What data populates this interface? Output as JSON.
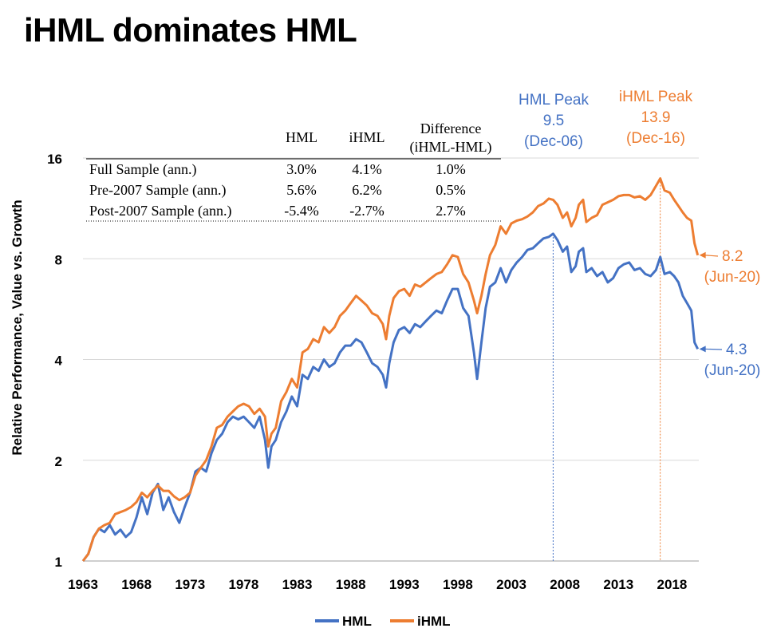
{
  "page": {
    "title": "iHML dominates HML"
  },
  "colors": {
    "hml": "#4472C4",
    "ihml": "#ED7D31",
    "grid": "#D9D9D9",
    "axis": "#BFBFBF"
  },
  "chart_data": {
    "type": "line",
    "title": "iHML dominates HML",
    "ylabel": "Relative Performance, Value vs. Growth",
    "xlabel": "",
    "y_scale": "log2",
    "ylim": [
      1,
      16
    ],
    "xlim": [
      1963,
      2020.5
    ],
    "y_ticks": [
      "1",
      "2",
      "4",
      "8",
      "16"
    ],
    "x_ticks": [
      "1963",
      "1968",
      "1973",
      "1978",
      "1983",
      "1988",
      "1993",
      "1998",
      "2003",
      "2008",
      "2013",
      "2018"
    ],
    "grid": "horizontal",
    "legend_position": "bottom",
    "series": [
      {
        "name": "HML",
        "color": "#4472C4",
        "x": [
          1963.0,
          1963.5,
          1964.0,
          1964.5,
          1965.0,
          1965.5,
          1966.0,
          1966.5,
          1967.0,
          1967.5,
          1968.0,
          1968.5,
          1969.0,
          1969.5,
          1970.0,
          1970.5,
          1971.0,
          1971.5,
          1972.0,
          1972.5,
          1973.0,
          1973.5,
          1974.0,
          1974.5,
          1975.0,
          1975.5,
          1976.0,
          1976.5,
          1977.0,
          1977.5,
          1978.0,
          1978.5,
          1979.0,
          1979.5,
          1980.0,
          1980.3,
          1980.6,
          1981.0,
          1981.5,
          1982.0,
          1982.5,
          1983.0,
          1983.5,
          1984.0,
          1984.5,
          1985.0,
          1985.5,
          1986.0,
          1986.5,
          1987.0,
          1987.5,
          1988.0,
          1988.5,
          1989.0,
          1989.5,
          1990.0,
          1990.5,
          1991.0,
          1991.3,
          1991.6,
          1992.0,
          1992.5,
          1993.0,
          1993.5,
          1994.0,
          1994.5,
          1995.0,
          1995.5,
          1996.0,
          1996.5,
          1997.0,
          1997.5,
          1998.0,
          1998.5,
          1999.0,
          1999.5,
          1999.8,
          2000.2,
          2000.6,
          2001.0,
          2001.5,
          2002.0,
          2002.5,
          2003.0,
          2003.5,
          2004.0,
          2004.5,
          2005.0,
          2005.5,
          2006.0,
          2006.5,
          2006.9,
          2007.3,
          2007.8,
          2008.2,
          2008.6,
          2009.0,
          2009.3,
          2009.7,
          2010.0,
          2010.5,
          2011.0,
          2011.5,
          2012.0,
          2012.5,
          2013.0,
          2013.5,
          2014.0,
          2014.5,
          2015.0,
          2015.5,
          2016.0,
          2016.5,
          2016.9,
          2017.3,
          2017.8,
          2018.2,
          2018.6,
          2019.0,
          2019.4,
          2019.8,
          2020.1,
          2020.4
        ],
        "values": [
          1.0,
          1.05,
          1.18,
          1.25,
          1.22,
          1.28,
          1.2,
          1.24,
          1.18,
          1.22,
          1.35,
          1.55,
          1.38,
          1.6,
          1.7,
          1.42,
          1.55,
          1.4,
          1.3,
          1.45,
          1.6,
          1.85,
          1.9,
          1.85,
          2.1,
          2.3,
          2.4,
          2.6,
          2.7,
          2.65,
          2.7,
          2.6,
          2.5,
          2.7,
          2.3,
          1.9,
          2.2,
          2.3,
          2.6,
          2.8,
          3.1,
          2.9,
          3.6,
          3.5,
          3.8,
          3.7,
          4.0,
          3.8,
          3.9,
          4.2,
          4.4,
          4.4,
          4.6,
          4.5,
          4.2,
          3.9,
          3.8,
          3.6,
          3.3,
          3.9,
          4.5,
          4.9,
          5.0,
          4.8,
          5.1,
          5.0,
          5.2,
          5.4,
          5.6,
          5.5,
          6.0,
          6.5,
          6.5,
          5.7,
          5.4,
          4.2,
          3.5,
          4.5,
          5.7,
          6.6,
          6.8,
          7.5,
          6.8,
          7.4,
          7.8,
          8.1,
          8.5,
          8.6,
          8.9,
          9.2,
          9.3,
          9.5,
          9.1,
          8.4,
          8.7,
          7.3,
          7.6,
          8.4,
          8.6,
          7.3,
          7.5,
          7.1,
          7.3,
          6.8,
          7.0,
          7.5,
          7.7,
          7.8,
          7.4,
          7.5,
          7.2,
          7.1,
          7.4,
          8.1,
          7.2,
          7.3,
          7.1,
          6.8,
          6.2,
          5.9,
          5.6,
          4.5,
          4.3
        ]
      },
      {
        "name": "iHML",
        "color": "#ED7D31",
        "x": [
          1963.0,
          1963.5,
          1964.0,
          1964.5,
          1965.0,
          1965.5,
          1966.0,
          1966.5,
          1967.0,
          1967.5,
          1968.0,
          1968.5,
          1969.0,
          1969.5,
          1970.0,
          1970.5,
          1971.0,
          1971.5,
          1972.0,
          1972.5,
          1973.0,
          1973.5,
          1974.0,
          1974.5,
          1975.0,
          1975.5,
          1976.0,
          1976.5,
          1977.0,
          1977.5,
          1978.0,
          1978.5,
          1979.0,
          1979.5,
          1980.0,
          1980.3,
          1980.6,
          1981.0,
          1981.5,
          1982.0,
          1982.5,
          1983.0,
          1983.5,
          1984.0,
          1984.5,
          1985.0,
          1985.5,
          1986.0,
          1986.5,
          1987.0,
          1987.5,
          1988.0,
          1988.5,
          1989.0,
          1989.5,
          1990.0,
          1990.5,
          1991.0,
          1991.3,
          1991.6,
          1992.0,
          1992.5,
          1993.0,
          1993.5,
          1994.0,
          1994.5,
          1995.0,
          1995.5,
          1996.0,
          1996.5,
          1997.0,
          1997.5,
          1998.0,
          1998.5,
          1999.0,
          1999.5,
          1999.8,
          2000.2,
          2000.6,
          2001.0,
          2001.5,
          2002.0,
          2002.5,
          2003.0,
          2003.5,
          2004.0,
          2004.5,
          2005.0,
          2005.5,
          2006.0,
          2006.5,
          2006.9,
          2007.3,
          2007.8,
          2008.2,
          2008.6,
          2009.0,
          2009.3,
          2009.7,
          2010.0,
          2010.5,
          2011.0,
          2011.5,
          2012.0,
          2012.5,
          2013.0,
          2013.5,
          2014.0,
          2014.5,
          2015.0,
          2015.5,
          2016.0,
          2016.5,
          2016.9,
          2017.3,
          2017.8,
          2018.2,
          2018.6,
          2019.0,
          2019.4,
          2019.8,
          2020.1,
          2020.4
        ],
        "values": [
          1.0,
          1.05,
          1.18,
          1.25,
          1.28,
          1.3,
          1.38,
          1.4,
          1.42,
          1.45,
          1.5,
          1.6,
          1.55,
          1.62,
          1.68,
          1.62,
          1.62,
          1.56,
          1.52,
          1.55,
          1.6,
          1.8,
          1.9,
          2.0,
          2.2,
          2.5,
          2.55,
          2.7,
          2.8,
          2.9,
          2.95,
          2.9,
          2.75,
          2.85,
          2.7,
          2.2,
          2.4,
          2.5,
          3.0,
          3.2,
          3.5,
          3.3,
          4.2,
          4.3,
          4.6,
          4.5,
          5.0,
          4.8,
          5.0,
          5.4,
          5.6,
          5.9,
          6.2,
          6.0,
          5.8,
          5.5,
          5.4,
          5.1,
          4.6,
          5.4,
          6.1,
          6.4,
          6.5,
          6.2,
          6.7,
          6.6,
          6.8,
          7.0,
          7.2,
          7.3,
          7.7,
          8.2,
          8.1,
          7.2,
          6.8,
          6.0,
          5.5,
          6.2,
          7.2,
          8.2,
          8.8,
          10.0,
          9.5,
          10.2,
          10.4,
          10.5,
          10.7,
          11.0,
          11.5,
          11.7,
          12.1,
          12.0,
          11.6,
          10.6,
          11.0,
          10.0,
          10.6,
          11.6,
          12.0,
          10.3,
          10.6,
          10.8,
          11.6,
          11.8,
          12.0,
          12.3,
          12.4,
          12.4,
          12.2,
          12.3,
          12.0,
          12.4,
          13.2,
          13.9,
          12.8,
          12.6,
          12.0,
          11.5,
          11.0,
          10.6,
          10.4,
          8.9,
          8.2
        ]
      }
    ],
    "annotations": [
      {
        "id": "hml_peak",
        "lines": [
          "HML Peak",
          "9.5",
          "(Dec-06)"
        ],
        "color": "#4472C4",
        "x": 2006.9,
        "value": 9.5
      },
      {
        "id": "ihml_peak",
        "lines": [
          "iHML Peak",
          "13.9",
          "(Dec-16)"
        ],
        "color": "#ED7D31",
        "x": 2016.9,
        "value": 13.9
      },
      {
        "id": "ihml_end",
        "lines": [
          "8.2",
          "(Jun-20)"
        ],
        "color": "#ED7D31",
        "x": 2020.4,
        "value": 8.2
      },
      {
        "id": "hml_end",
        "lines": [
          "4.3",
          "(Jun-20)"
        ],
        "color": "#4472C4",
        "x": 2020.4,
        "value": 4.3
      }
    ],
    "table": {
      "columns": [
        "HML",
        "iHML",
        "Difference\n(iHML-HML)"
      ],
      "rows": [
        {
          "label": "Full Sample (ann.)",
          "values": [
            "3.0%",
            "4.1%",
            "1.0%"
          ]
        },
        {
          "label": "Pre-2007 Sample (ann.)",
          "values": [
            "5.6%",
            "6.2%",
            "0.5%"
          ]
        },
        {
          "label": "Post-2007 Sample (ann.)",
          "values": [
            "-5.4%",
            "-2.7%",
            "2.7%"
          ]
        }
      ]
    }
  }
}
